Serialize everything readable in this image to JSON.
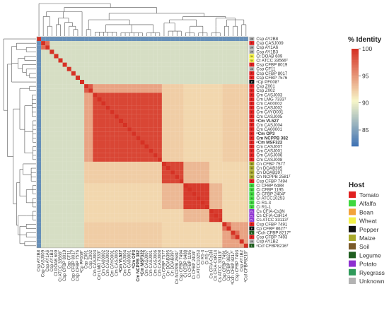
{
  "chart_data": {
    "type": "heatmap",
    "title": "",
    "xlabel": "",
    "ylabel": "",
    "strains": [
      {
        "label": "Csp AY2B8",
        "host": "Unknown",
        "bold": false
      },
      {
        "label": "Csp CASJ009",
        "host": "Tomato",
        "bold": false
      },
      {
        "label": "Csp AY1A6",
        "host": "Unknown",
        "bold": false
      },
      {
        "label": "Csp AY1B3",
        "host": "Unknown",
        "bold": false
      },
      {
        "label": "Ct DOAB 609",
        "host": "Wheat",
        "bold": false
      },
      {
        "label": "Ct ATCC 33566ᵀ",
        "host": "Wheat",
        "bold": false
      },
      {
        "label": "Csp CFBP 8019",
        "host": "Tomato",
        "bold": false
      },
      {
        "label": "Csp CF11",
        "host": "Unknown",
        "bold": false
      },
      {
        "label": "Csp CFBP 8017",
        "host": "Tomato",
        "bold": false
      },
      {
        "label": "Csp CFBP 7576",
        "host": "Tomato",
        "bold": false
      },
      {
        "label": "ᵃCp PF008ᵀ",
        "host": "Pepper",
        "bold": false
      },
      {
        "label": "Csp Z001",
        "host": "Tomato",
        "bold": false
      },
      {
        "label": "Csp Z002",
        "host": "Tomato",
        "bold": false
      },
      {
        "label": "Cm CASJ003",
        "host": "Tomato",
        "bold": false
      },
      {
        "label": "Cm LMG 7333ᵀ",
        "host": "Tomato",
        "bold": false
      },
      {
        "label": "Cm CA00002",
        "host": "Tomato",
        "bold": false
      },
      {
        "label": "Cm CASJ002",
        "host": "Tomato",
        "bold": false
      },
      {
        "label": "Cm CAYO001",
        "host": "Tomato",
        "bold": false
      },
      {
        "label": "Cm CASJ005",
        "host": "Tomato",
        "bold": false
      },
      {
        "label": "ᵃCm VL527",
        "host": "Tomato",
        "bold": true
      },
      {
        "label": "Cm CASJ004",
        "host": "Tomato",
        "bold": false
      },
      {
        "label": "Cm CA00001",
        "host": "Tomato",
        "bold": false
      },
      {
        "label": "ᵃCm OP3",
        "host": "Tomato",
        "bold": true
      },
      {
        "label": "Cm NCPPB 382",
        "host": "Tomato",
        "bold": true
      },
      {
        "label": "ᵃCm MSF322",
        "host": "Tomato",
        "bold": true
      },
      {
        "label": "Cm CASJ007",
        "host": "Tomato",
        "bold": false
      },
      {
        "label": "Cm CASJ001",
        "host": "Tomato",
        "bold": false
      },
      {
        "label": "Cm CASJ006",
        "host": "Tomato",
        "bold": false
      },
      {
        "label": "Cm CASJ008",
        "host": "Tomato",
        "bold": false
      },
      {
        "label": "Cn CFBP 7577",
        "host": "Maize",
        "bold": false
      },
      {
        "label": "Cn DOAB395",
        "host": "Maize",
        "bold": false
      },
      {
        "label": "Cn DOAB397",
        "host": "Maize",
        "bold": false
      },
      {
        "label": "Cn NCPPB 2581ᵀ",
        "host": "Maize",
        "bold": false
      },
      {
        "label": "Csp CFBP 7494",
        "host": "Tomato",
        "bold": false
      },
      {
        "label": "Ci CFBP 6488",
        "host": "Alfalfa",
        "bold": false
      },
      {
        "label": "Ci CFBP 1195",
        "host": "Alfalfa",
        "bold": false
      },
      {
        "label": "Ci CFBP 2404ᵀ",
        "host": "Alfalfa",
        "bold": false
      },
      {
        "label": "Ci ATCC10253",
        "host": "Alfalfa",
        "bold": false
      },
      {
        "label": "Ci R1-3",
        "host": "Alfalfa",
        "bold": false
      },
      {
        "label": "Ci R1-1",
        "host": "Alfalfa",
        "bold": false
      },
      {
        "label": "Cs CFIA-Cs3N",
        "host": "Potato",
        "bold": false
      },
      {
        "label": "Cs CFIA-CsR14",
        "host": "Potato",
        "bold": false
      },
      {
        "label": "Cs ATCC 33113ᵀ",
        "host": "Potato",
        "bold": false
      },
      {
        "label": "Csp CFBP 7491",
        "host": "Tomato",
        "bold": false
      },
      {
        "label": "Cp CFBP 8627ᵀ",
        "host": "Pepper",
        "bold": false
      },
      {
        "label": "ᵃCch CFBP 8217ᵀ",
        "host": "Legume",
        "bold": false
      },
      {
        "label": "Csp CFBP 7493",
        "host": "Tomato",
        "bold": false
      },
      {
        "label": "Csp AY1B2",
        "host": "Unknown",
        "bold": false
      },
      {
        "label": "ᵃCcf CFBP8216ᵀ",
        "host": "Legume",
        "bold": false
      }
    ],
    "blocks": [
      {
        "from": "Csp AY2B8",
        "to": "Csp AY2B8",
        "identity": 100
      },
      {
        "from": "Csp CASJ009",
        "to": "Csp AY1A6",
        "identity": 97
      },
      {
        "from": "Csp Z001",
        "to": "Csp Z002",
        "identity": 98
      },
      {
        "from": "Cm CASJ003",
        "to": "Cm CASJ008",
        "identity": 99
      },
      {
        "from": "Cn CFBP 7577",
        "to": "Csp CFBP 7494",
        "identity": 99
      },
      {
        "from": "Ci CFBP 6488",
        "to": "Ci R1-1",
        "identity": 99.5
      },
      {
        "from": "Cs CFIA-Cs3N",
        "to": "Cs ATCC 33113ᵀ",
        "identity": 99.5
      },
      {
        "from": "Csp CFBP 7491",
        "to": "Cp CFBP 8627ᵀ",
        "identity": 97
      },
      {
        "from": "ᵃCch CFBP 8217ᵀ",
        "to": "Csp CFBP 7493",
        "identity": 97
      }
    ],
    "colorbar": {
      "title": "% Identity",
      "min": 82,
      "max": 100,
      "ticks": [
        100,
        95,
        90,
        85
      ],
      "colors": {
        "low": "#3a6fb4",
        "mid": "#f7f6c8",
        "high": "#d53124"
      }
    },
    "host_legend": {
      "title": "Host",
      "items": [
        {
          "name": "Tomato",
          "color": "#e02020"
        },
        {
          "name": "Alfalfa",
          "color": "#3fd83f"
        },
        {
          "name": "Bean",
          "color": "#f2a33a"
        },
        {
          "name": "Wheat",
          "color": "#f2f048"
        },
        {
          "name": "Pepper",
          "color": "#111111"
        },
        {
          "name": "Maize",
          "color": "#a9a92b"
        },
        {
          "name": "Soil",
          "color": "#7a5a2a"
        },
        {
          "name": "Legume",
          "color": "#1f5e1f"
        },
        {
          "name": "Potato",
          "color": "#8d2fd0"
        },
        {
          "name": "Ryegrass",
          "color": "#2f9a5a"
        },
        {
          "name": "Unknown",
          "color": "#b3b3b3"
        }
      ]
    },
    "host_codes": {
      "Tomato": "T",
      "Alfalfa": "A",
      "Bean": "B",
      "Wheat": "W",
      "Pepper": "P",
      "Maize": "M",
      "Soil": "S",
      "Legume": "L",
      "Potato": "Po",
      "Ryegrass": "R",
      "Unknown": "UN"
    }
  }
}
